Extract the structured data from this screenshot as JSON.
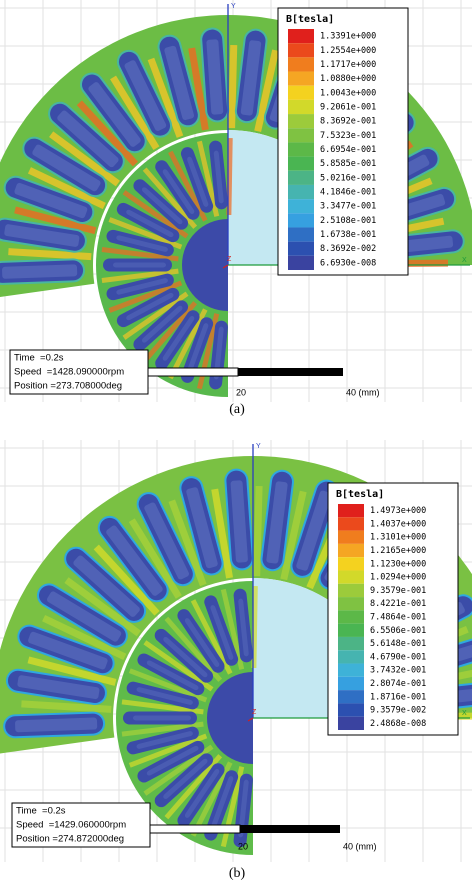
{
  "panels": [
    {
      "legend": {
        "title": "B[tesla]",
        "values": [
          "1.3391e+000",
          "1.2554e+000",
          "1.1717e+000",
          "1.0880e+000",
          "1.0043e+000",
          "9.2061e-001",
          "8.3692e-001",
          "7.5323e-001",
          "6.6954e-001",
          "5.8585e-001",
          "5.0216e-001",
          "4.1846e-001",
          "3.3477e-001",
          "2.5108e-001",
          "1.6738e-001",
          "8.3692e-002",
          "6.6930e-008"
        ],
        "colors": [
          "#e0201c",
          "#eb4a1c",
          "#f07d1e",
          "#f5a623",
          "#f4d21f",
          "#d2d92a",
          "#9ccb3b",
          "#7fc242",
          "#5cb848",
          "#4ab552",
          "#4cb486",
          "#46b4b0",
          "#3eb2d8",
          "#36a0e0",
          "#2f6fc4",
          "#2c50b0",
          "#3a43a0"
        ]
      },
      "info": [
        "Time  =0.2s",
        "Speed  =1428.090000rpm",
        "Position =273.708000deg"
      ],
      "scale_labels": [
        "20",
        "40 (mm)"
      ],
      "axis_labels": [
        "Y",
        "X",
        "Z"
      ],
      "caption": "(a)"
    },
    {
      "legend": {
        "title": "B[tesla]",
        "values": [
          "1.4973e+000",
          "1.4037e+000",
          "1.3101e+000",
          "1.2165e+000",
          "1.1230e+000",
          "1.0294e+000",
          "9.3579e-001",
          "8.4221e-001",
          "7.4864e-001",
          "6.5506e-001",
          "5.6148e-001",
          "4.6790e-001",
          "3.7432e-001",
          "2.8074e-001",
          "1.8716e-001",
          "9.3579e-002",
          "2.4868e-008"
        ],
        "colors": [
          "#e0201c",
          "#eb4a1c",
          "#f07d1e",
          "#f5a623",
          "#f4d21f",
          "#d2d92a",
          "#9ccb3b",
          "#7fc242",
          "#5cb848",
          "#4ab552",
          "#4cb486",
          "#46b4b0",
          "#3eb2d8",
          "#36a0e0",
          "#2f6fc4",
          "#2c50b0",
          "#3a43a0"
        ]
      },
      "info": [
        "Time  =0.2s",
        "Speed  =1429.060000rpm",
        "Position =274.872000deg"
      ],
      "scale_labels": [
        "20",
        "40 (mm)"
      ],
      "axis_labels": [
        "Y",
        "X",
        "Z"
      ],
      "caption": "(b)"
    }
  ]
}
